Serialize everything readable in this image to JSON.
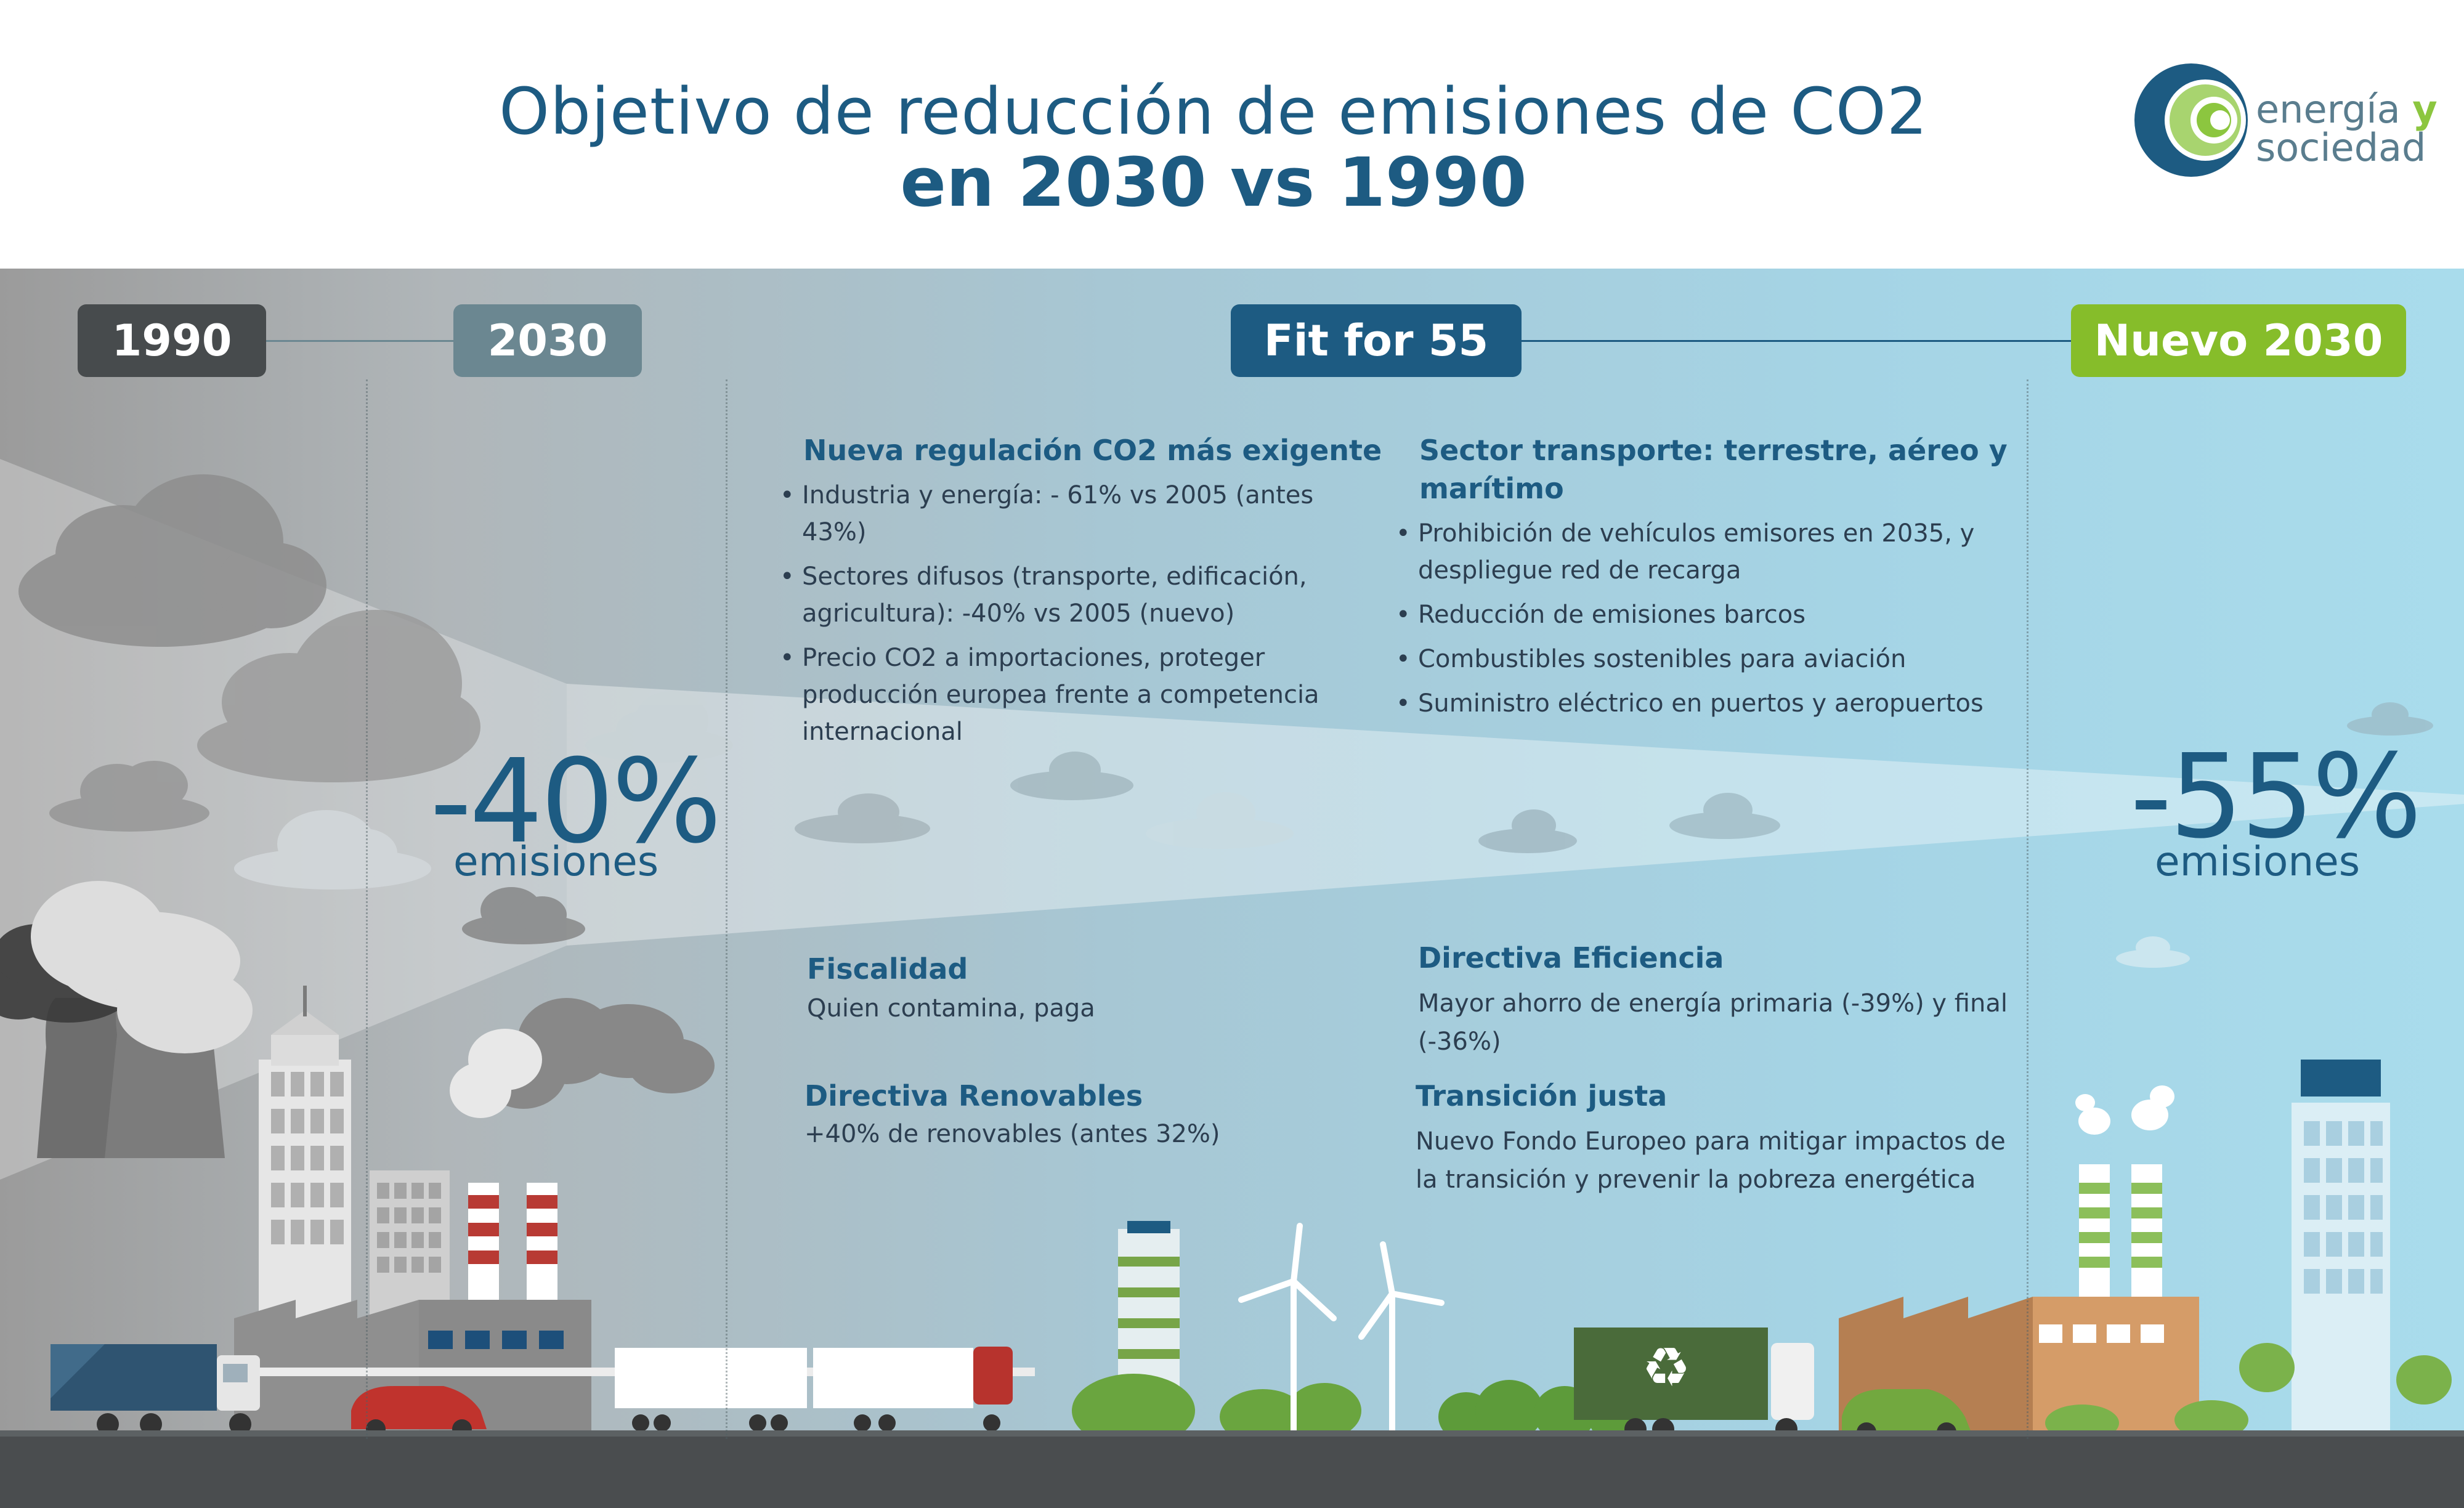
{
  "header": {
    "title_line1": "Objetivo de reducción de emisiones de CO2",
    "title_line2": "en 2030 vs 1990",
    "logo_word1": "energía",
    "logo_word_y": "y",
    "logo_word2": "sociedad"
  },
  "timeline": {
    "label_1990": "1990",
    "label_2030": "2030",
    "label_fit": "Fit for 55",
    "label_new": "Nuevo 2030"
  },
  "reductions": {
    "old_value": "-40%",
    "old_label": "emisiones",
    "new_value": "-55%",
    "new_label": "emisiones"
  },
  "sections": {
    "regulation": {
      "heading": "Nueva regulación CO2 más exigente",
      "items": [
        "Industria y energía: - 61% vs 2005 (antes 43%)",
        "Sectores difusos (transporte, edificación, agricultura): -40% vs 2005 (nuevo)",
        "Precio CO2 a importaciones, proteger producción europea frente a competencia internacional"
      ]
    },
    "transport": {
      "heading": "Sector transporte: terrestre, aéreo y marítimo",
      "items": [
        "Prohibición de vehículos emisores en 2035, y despliegue red de recarga",
        "Reducción de emisiones barcos",
        "Combustibles sostenibles para aviación",
        "Suministro eléctrico en puertos y aeropuertos"
      ]
    },
    "fiscal": {
      "heading": "Fiscalidad",
      "text": "Quien contamina, paga"
    },
    "renewables": {
      "heading": "Directiva Renovables",
      "text": "+40% de renovables (antes 32%)"
    },
    "efficiency": {
      "heading": "Directiva Eficiencia",
      "text": "Mayor ahorro de energía primaria (-39%) y final (-36%)"
    },
    "just_transition": {
      "heading": "Transición justa",
      "text": "Nuevo Fondo Europeo para mitigar impactos de la transición y prevenir la pobreza energética"
    }
  },
  "colors": {
    "brand_blue": "#1d5b82",
    "green": "#86bd2a",
    "dark_grey": "#474b4d",
    "slate": "#6b8791"
  },
  "icons": {
    "recycle": "recycle-icon",
    "logo": "energia-sociedad-logo"
  }
}
